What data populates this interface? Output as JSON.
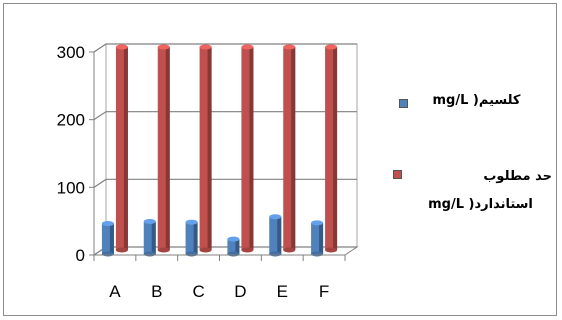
{
  "chart_data": {
    "type": "bar",
    "categories": [
      "A",
      "B",
      "C",
      "D",
      "E",
      "F"
    ],
    "series": [
      {
        "name": "کلسیم( mg/L",
        "values": [
          45,
          48,
          47,
          22,
          55,
          46
        ],
        "color": "#4f81bd"
      },
      {
        "name": "حد مطلوب استاندارد( mg/L",
        "values": [
          300,
          300,
          300,
          300,
          300,
          300
        ],
        "color": "#c0504d"
      }
    ],
    "yticks": [
      0,
      100,
      200,
      300
    ],
    "ylim": [
      0,
      300
    ],
    "grid": true,
    "three_d": true,
    "legend_position": "right"
  },
  "legend": {
    "series1_label": "کلسیم( mg/L",
    "series2_label_line1": "حد مطلوب",
    "series2_label_line2": "استاندارد( mg/L"
  }
}
